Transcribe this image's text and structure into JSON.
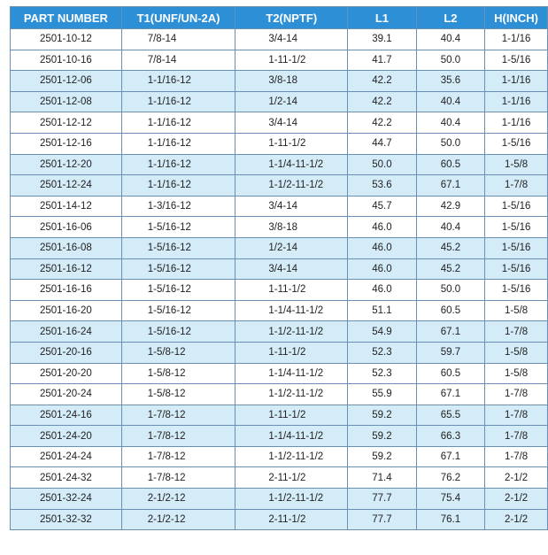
{
  "table": {
    "headers": [
      "PART NUMBER",
      "T1(UNF/UN-2A)",
      "T2(NPTF)",
      "L1",
      "L2",
      "H(INCH)"
    ],
    "rows": [
      [
        "2501-10-12",
        "7/8-14",
        "3/4-14",
        "39.1",
        "40.4",
        "1-1/16"
      ],
      [
        "2501-10-16",
        "7/8-14",
        "1-11-1/2",
        "41.7",
        "50.0",
        "1-5/16"
      ],
      [
        "2501-12-06",
        "1-1/16-12",
        "3/8-18",
        "42.2",
        "35.6",
        "1-1/16"
      ],
      [
        "2501-12-08",
        "1-1/16-12",
        "1/2-14",
        "42.2",
        "40.4",
        "1-1/16"
      ],
      [
        "2501-12-12",
        "1-1/16-12",
        "3/4-14",
        "42.2",
        "40.4",
        "1-1/16"
      ],
      [
        "2501-12-16",
        "1-1/16-12",
        "1-11-1/2",
        "44.7",
        "50.0",
        "1-5/16"
      ],
      [
        "2501-12-20",
        "1-1/16-12",
        "1-1/4-11-1/2",
        "50.0",
        "60.5",
        "1-5/8"
      ],
      [
        "2501-12-24",
        "1-1/16-12",
        "1-1/2-11-1/2",
        "53.6",
        "67.1",
        "1-7/8"
      ],
      [
        "2501-14-12",
        "1-3/16-12",
        "3/4-14",
        "45.7",
        "42.9",
        "1-5/16"
      ],
      [
        "2501-16-06",
        "1-5/16-12",
        "3/8-18",
        "46.0",
        "40.4",
        "1-5/16"
      ],
      [
        "2501-16-08",
        "1-5/16-12",
        "1/2-14",
        "46.0",
        "45.2",
        "1-5/16"
      ],
      [
        "2501-16-12",
        "1-5/16-12",
        "3/4-14",
        "46.0",
        "45.2",
        "1-5/16"
      ],
      [
        "2501-16-16",
        "1-5/16-12",
        "1-11-1/2",
        "46.0",
        "50.0",
        "1-5/16"
      ],
      [
        "2501-16-20",
        "1-5/16-12",
        "1-1/4-11-1/2",
        "51.1",
        "60.5",
        "1-5/8"
      ],
      [
        "2501-16-24",
        "1-5/16-12",
        "1-1/2-11-1/2",
        "54.9",
        "67.1",
        "1-7/8"
      ],
      [
        "2501-20-16",
        "1-5/8-12",
        "1-11-1/2",
        "52.3",
        "59.7",
        "1-5/8"
      ],
      [
        "2501-20-20",
        "1-5/8-12",
        "1-1/4-11-1/2",
        "52.3",
        "60.5",
        "1-5/8"
      ],
      [
        "2501-20-24",
        "1-5/8-12",
        "1-1/2-11-1/2",
        "55.9",
        "67.1",
        "1-7/8"
      ],
      [
        "2501-24-16",
        "1-7/8-12",
        "1-11-1/2",
        "59.2",
        "65.5",
        "1-7/8"
      ],
      [
        "2501-24-20",
        "1-7/8-12",
        "1-1/4-11-1/2",
        "59.2",
        "66.3",
        "1-7/8"
      ],
      [
        "2501-24-24",
        "1-7/8-12",
        "1-1/2-11-1/2",
        "59.2",
        "67.1",
        "1-7/8"
      ],
      [
        "2501-24-32",
        "1-7/8-12",
        "2-11-1/2",
        "71.4",
        "76.2",
        "2-1/2"
      ],
      [
        "2501-32-24",
        "2-1/2-12",
        "1-1/2-11-1/2",
        "77.7",
        "75.4",
        "2-1/2"
      ],
      [
        "2501-32-32",
        "2-1/2-12",
        "2-11-1/2",
        "77.7",
        "76.1",
        "2-1/2"
      ]
    ],
    "shaded_rows": [
      2,
      3,
      6,
      7,
      10,
      11,
      14,
      15,
      18,
      19,
      22,
      23
    ],
    "colors": {
      "header_bg": "#2d8fd6",
      "header_text": "#ffffff",
      "shaded_row_bg": "#d4ebf8",
      "row_bg": "#ffffff",
      "border": "#6a8fb5"
    }
  }
}
